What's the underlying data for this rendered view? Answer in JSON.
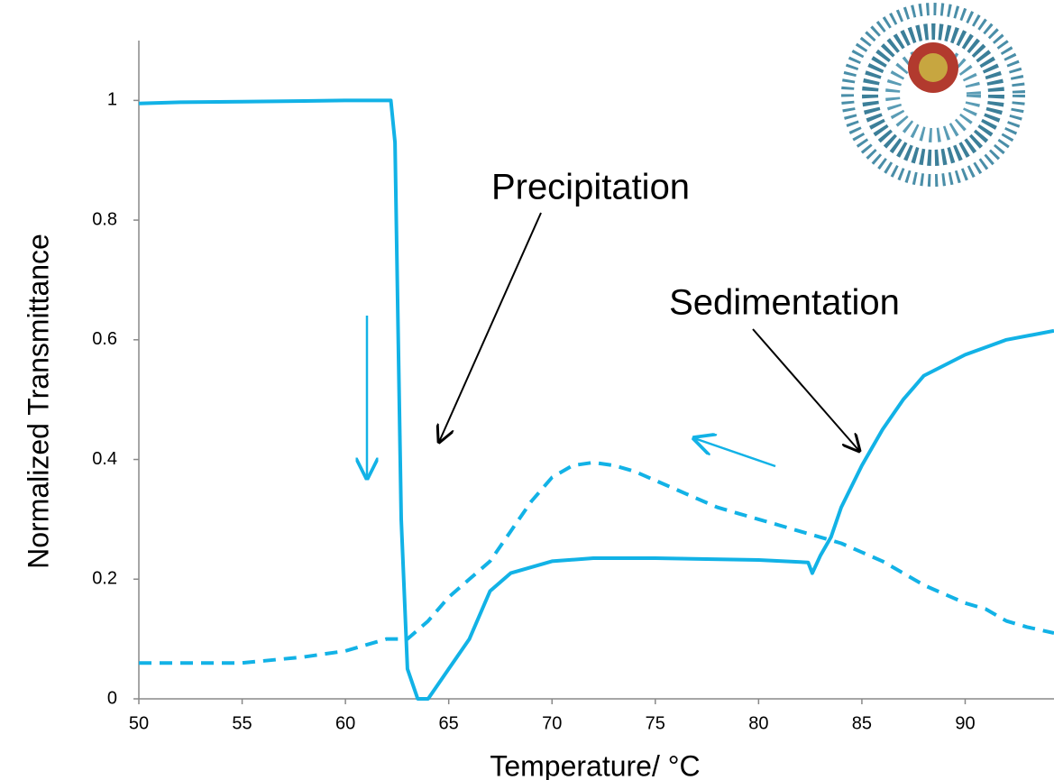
{
  "chart_data": {
    "type": "line",
    "x_label": "Temperature/ °C",
    "y_label": "Normalized Transmittance",
    "annotations": [
      "Precipitation",
      "Sedimentation"
    ],
    "xlim": [
      50,
      94.3
    ],
    "ylim": [
      0,
      1.1
    ],
    "xticks": [
      50,
      55,
      60,
      65,
      70,
      75,
      80,
      85,
      90
    ],
    "yticks": [
      0,
      0.2,
      0.4,
      0.6,
      0.8,
      1
    ],
    "grid": false,
    "series": [
      {
        "color": "#12b2e6",
        "line_style": "solid",
        "x": [
          50,
          52,
          55,
          58,
          60,
          62.2,
          62.4,
          62.7,
          63,
          63.5,
          64,
          65,
          66,
          67,
          68,
          70,
          72,
          75,
          80,
          82.4,
          82.6,
          83,
          83.5,
          84,
          85,
          86,
          87,
          88,
          90,
          92,
          94.3
        ],
        "values": [
          0.995,
          0.997,
          0.998,
          0.999,
          1.0,
          1.0,
          0.93,
          0.3,
          0.05,
          0.0,
          0.0,
          0.05,
          0.1,
          0.18,
          0.21,
          0.23,
          0.235,
          0.235,
          0.232,
          0.228,
          0.21,
          0.24,
          0.27,
          0.32,
          0.39,
          0.45,
          0.5,
          0.54,
          0.575,
          0.6,
          0.615
        ]
      },
      {
        "color": "#12b2e6",
        "line_style": "dashed",
        "x": [
          50,
          52,
          55,
          58,
          60,
          62,
          63,
          64,
          65,
          66,
          67,
          68,
          69,
          70,
          71,
          72,
          73,
          74,
          75,
          76,
          77,
          78,
          79,
          80,
          81,
          82,
          83,
          84,
          85,
          86,
          87,
          88,
          89,
          90,
          91,
          92,
          93,
          94.3
        ],
        "values": [
          0.06,
          0.06,
          0.06,
          0.07,
          0.08,
          0.1,
          0.1,
          0.13,
          0.17,
          0.2,
          0.23,
          0.28,
          0.33,
          0.37,
          0.39,
          0.395,
          0.39,
          0.38,
          0.365,
          0.35,
          0.335,
          0.32,
          0.31,
          0.3,
          0.29,
          0.28,
          0.27,
          0.26,
          0.245,
          0.23,
          0.21,
          0.19,
          0.175,
          0.16,
          0.15,
          0.13,
          0.12,
          0.11
        ]
      }
    ]
  }
}
